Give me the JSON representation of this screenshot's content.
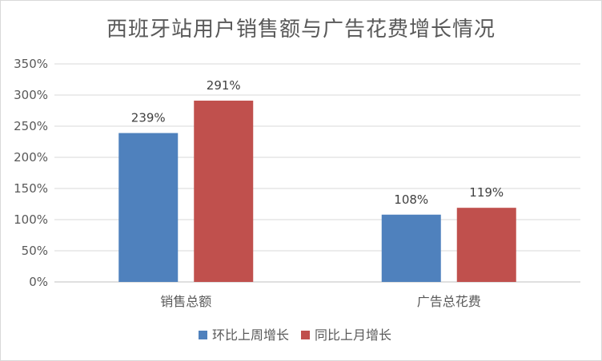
{
  "chart_data": {
    "type": "bar",
    "title": "西班牙站用户销售额与广告花费增长情况",
    "categories": [
      "销售总额",
      "广告总花费"
    ],
    "series": [
      {
        "name": "环比上周增长",
        "values": [
          239,
          108
        ],
        "labels": [
          "239%",
          "108%"
        ],
        "color": "#4f81bd"
      },
      {
        "name": "同比上月增长",
        "values": [
          291,
          119
        ],
        "labels": [
          "291%",
          "119%"
        ],
        "color": "#c0504d"
      }
    ],
    "ylim": [
      0,
      350
    ],
    "yticks": [
      "0%",
      "50%",
      "100%",
      "150%",
      "200%",
      "250%",
      "300%",
      "350%"
    ],
    "grid": true,
    "legend_position": "bottom"
  }
}
